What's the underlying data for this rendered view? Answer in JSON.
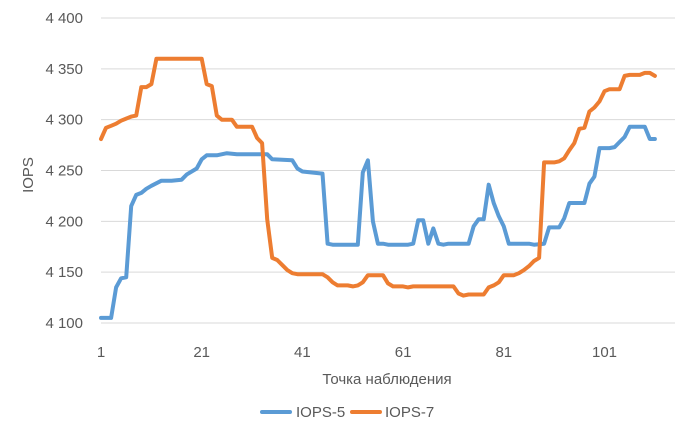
{
  "chart_data": {
    "type": "line",
    "title": "",
    "xlabel": "Точка наблюдения",
    "ylabel": "IOPS",
    "ylim": [
      4100,
      4400
    ],
    "ytick_values": [
      4100,
      4150,
      4200,
      4250,
      4300,
      4350,
      4400
    ],
    "ytick_labels": [
      "4 100",
      "4 150",
      "4 200",
      "4 250",
      "4 300",
      "4 350",
      "4 400"
    ],
    "xlim": [
      1,
      115
    ],
    "xtick_values": [
      1,
      21,
      41,
      61,
      81,
      101
    ],
    "xtick_labels": [
      "1",
      "21",
      "41",
      "61",
      "81",
      "101"
    ],
    "grid": "horizontal",
    "legend_position": "bottom",
    "series": [
      {
        "name": "IOPS-5",
        "color": "#5b9bd5",
        "points": [
          [
            1,
            4105
          ],
          [
            3,
            4105
          ],
          [
            4,
            4135
          ],
          [
            5,
            4144
          ],
          [
            6,
            4145
          ],
          [
            7,
            4215
          ],
          [
            8,
            4226
          ],
          [
            9,
            4228
          ],
          [
            10,
            4232
          ],
          [
            11,
            4235
          ],
          [
            13,
            4240
          ],
          [
            15,
            4240
          ],
          [
            17,
            4241
          ],
          [
            18,
            4246
          ],
          [
            20,
            4252
          ],
          [
            21,
            4261
          ],
          [
            22,
            4265
          ],
          [
            24,
            4265
          ],
          [
            26,
            4267
          ],
          [
            28,
            4266
          ],
          [
            34,
            4266
          ],
          [
            35,
            4261
          ],
          [
            39,
            4260
          ],
          [
            40,
            4252
          ],
          [
            41,
            4249
          ],
          [
            45,
            4247
          ],
          [
            46,
            4178
          ],
          [
            47,
            4177
          ],
          [
            52,
            4177
          ],
          [
            53,
            4248
          ],
          [
            54,
            4260
          ],
          [
            55,
            4200
          ],
          [
            56,
            4178
          ],
          [
            57,
            4178
          ],
          [
            58,
            4177
          ],
          [
            62,
            4177
          ],
          [
            63,
            4178
          ],
          [
            64,
            4201
          ],
          [
            65,
            4201
          ],
          [
            66,
            4178
          ],
          [
            67,
            4193
          ],
          [
            68,
            4178
          ],
          [
            69,
            4177
          ],
          [
            70,
            4178
          ],
          [
            74,
            4178
          ],
          [
            75,
            4195
          ],
          [
            76,
            4202
          ],
          [
            77,
            4202
          ],
          [
            78,
            4236
          ],
          [
            79,
            4218
          ],
          [
            80,
            4205
          ],
          [
            81,
            4195
          ],
          [
            82,
            4178
          ],
          [
            86,
            4178
          ],
          [
            87,
            4177
          ],
          [
            89,
            4178
          ],
          [
            90,
            4194
          ],
          [
            92,
            4194
          ],
          [
            93,
            4203
          ],
          [
            94,
            4218
          ],
          [
            97,
            4218
          ],
          [
            98,
            4237
          ],
          [
            99,
            4244
          ],
          [
            100,
            4272
          ],
          [
            102,
            4272
          ],
          [
            103,
            4273
          ],
          [
            104,
            4278
          ],
          [
            105,
            4283
          ],
          [
            106,
            4293
          ],
          [
            109,
            4293
          ],
          [
            110,
            4281
          ],
          [
            111,
            4281
          ]
        ]
      },
      {
        "name": "IOPS-7",
        "color": "#ed7d31",
        "points": [
          [
            1,
            4281
          ],
          [
            2,
            4292
          ],
          [
            3,
            4294
          ],
          [
            4,
            4296
          ],
          [
            5,
            4299
          ],
          [
            6,
            4301
          ],
          [
            7,
            4303
          ],
          [
            8,
            4304
          ],
          [
            9,
            4332
          ],
          [
            10,
            4332
          ],
          [
            11,
            4335
          ],
          [
            12,
            4360
          ],
          [
            21,
            4360
          ],
          [
            22,
            4335
          ],
          [
            23,
            4333
          ],
          [
            24,
            4304
          ],
          [
            25,
            4300
          ],
          [
            27,
            4300
          ],
          [
            28,
            4293
          ],
          [
            31,
            4293
          ],
          [
            32,
            4282
          ],
          [
            33,
            4277
          ],
          [
            34,
            4202
          ],
          [
            35,
            4164
          ],
          [
            36,
            4162
          ],
          [
            37,
            4157
          ],
          [
            38,
            4152
          ],
          [
            39,
            4149
          ],
          [
            40,
            4148
          ],
          [
            45,
            4148
          ],
          [
            46,
            4145
          ],
          [
            47,
            4140
          ],
          [
            48,
            4137
          ],
          [
            50,
            4137
          ],
          [
            51,
            4136
          ],
          [
            52,
            4137
          ],
          [
            53,
            4140
          ],
          [
            54,
            4147
          ],
          [
            57,
            4147
          ],
          [
            58,
            4139
          ],
          [
            59,
            4136
          ],
          [
            61,
            4136
          ],
          [
            62,
            4135
          ],
          [
            63,
            4136
          ],
          [
            71,
            4136
          ],
          [
            72,
            4129
          ],
          [
            73,
            4127
          ],
          [
            74,
            4128
          ],
          [
            77,
            4128
          ],
          [
            78,
            4135
          ],
          [
            79,
            4137
          ],
          [
            80,
            4140
          ],
          [
            81,
            4147
          ],
          [
            83,
            4147
          ],
          [
            84,
            4149
          ],
          [
            85,
            4152
          ],
          [
            86,
            4156
          ],
          [
            87,
            4161
          ],
          [
            88,
            4164
          ],
          [
            89,
            4258
          ],
          [
            91,
            4258
          ],
          [
            92,
            4259
          ],
          [
            93,
            4262
          ],
          [
            94,
            4270
          ],
          [
            95,
            4277
          ],
          [
            96,
            4291
          ],
          [
            97,
            4292
          ],
          [
            98,
            4308
          ],
          [
            99,
            4312
          ],
          [
            100,
            4318
          ],
          [
            101,
            4328
          ],
          [
            102,
            4330
          ],
          [
            103,
            4330
          ],
          [
            104,
            4330
          ],
          [
            105,
            4343
          ],
          [
            106,
            4344
          ],
          [
            108,
            4344
          ],
          [
            109,
            4346
          ],
          [
            110,
            4346
          ],
          [
            111,
            4343
          ]
        ]
      }
    ]
  }
}
